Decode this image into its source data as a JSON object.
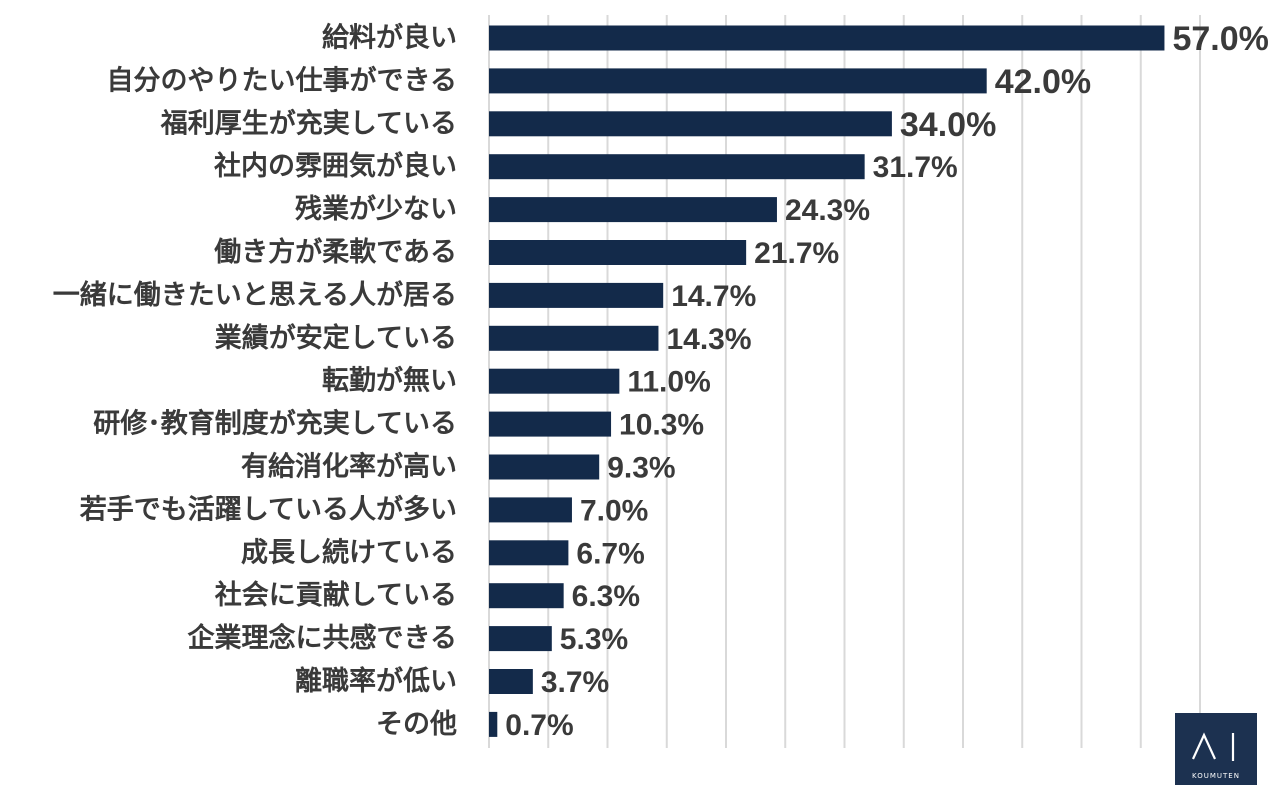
{
  "chart_data": {
    "type": "bar",
    "orientation": "horizontal",
    "title": "",
    "xlabel": "",
    "ylabel": "",
    "xlim": [
      0,
      60
    ],
    "grid": true,
    "unit": "%",
    "categories": [
      "給料が良い",
      "自分のやりたい仕事ができる",
      "福利厚生が充実している",
      "社内の雰囲気が良い",
      "残業が少ない",
      "働き方が柔軟である",
      "一緒に働きたいと思える人が居る",
      "業績が安定している",
      "転勤が無い",
      "研修･教育制度が充実している",
      "有給消化率が高い",
      "若手でも活躍している人が多い",
      "成長し続けている",
      "社会に貢献している",
      "企業理念に共感できる",
      "離職率が低い",
      "その他"
    ],
    "values": [
      57.0,
      42.0,
      34.0,
      31.7,
      24.3,
      21.7,
      14.7,
      14.3,
      11.0,
      10.3,
      9.3,
      7.0,
      6.7,
      6.3,
      5.3,
      3.7,
      0.7
    ],
    "value_labels": [
      "57.0%",
      "42.0%",
      "34.0%",
      "31.7%",
      "24.3%",
      "21.7%",
      "14.7%",
      "14.3%",
      "11.0%",
      "10.3%",
      "9.3%",
      "7.0%",
      "6.7%",
      "6.3%",
      "5.3%",
      "3.7%",
      "0.7%"
    ],
    "highlighted": [
      true,
      true,
      true,
      false,
      false,
      false,
      false,
      false,
      false,
      false,
      false,
      false,
      false,
      false,
      false,
      false,
      false
    ]
  },
  "colors": {
    "bar": "#132a4a",
    "highlight_label": "#ee1c1c",
    "label": "#3a3a3a",
    "grid": "#d9d9d9"
  },
  "logo": {
    "text": "KOUMUTEN",
    "icon": "ai-logo-icon"
  }
}
